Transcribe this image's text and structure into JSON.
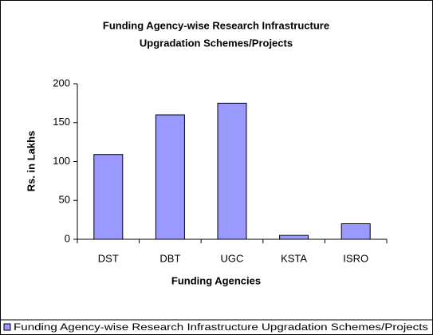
{
  "chart_data": {
    "type": "bar",
    "title": [
      "Funding Agency-wise Research Infrastructure",
      "Upgradation Schemes/Projects"
    ],
    "x_label": "Funding Agencies",
    "y_label": "Rs. in Lakhs",
    "categories": [
      "DST",
      "DBT",
      "UGC",
      "KSTA",
      "ISRO"
    ],
    "series": [
      {
        "name": "Funding Agency-wise Research Infrastructure Upgradation Schemes/Projects",
        "color": "#9999ff",
        "values": [
          109,
          160,
          175,
          5,
          20
        ]
      }
    ],
    "ylim": [
      0,
      200
    ],
    "yticks": [
      0,
      50,
      100,
      150,
      200
    ],
    "grid": false,
    "legend": "bottom"
  }
}
